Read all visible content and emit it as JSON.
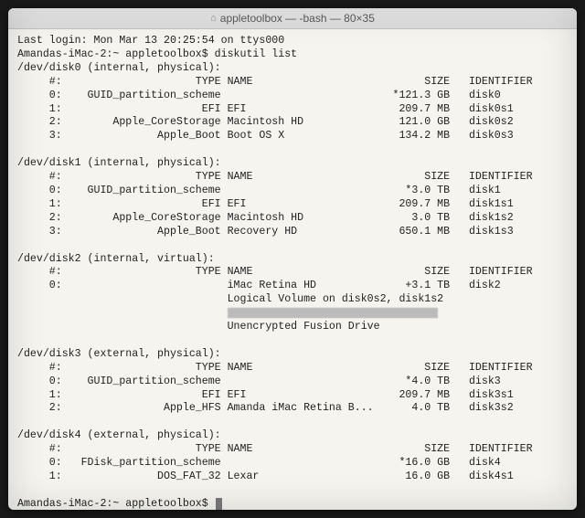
{
  "window": {
    "title": "appletoolbox — -bash — 80×35",
    "home_glyph": "⌂"
  },
  "session": {
    "last_login": "Last login: Mon Mar 13 20:25:54 on ttys000",
    "prompt_host": "Amandas-iMac-2:~ appletoolbox$",
    "command": "diskutil list"
  },
  "col": {
    "indent": 3,
    "num_w": 4,
    "type_w": 25,
    "name_w": 24,
    "size_w": 11,
    "id_pad": 3
  },
  "header_labels": {
    "num": "#:",
    "type": "TYPE",
    "name": "NAME",
    "size": "SIZE",
    "id": "IDENTIFIER"
  },
  "disks": [
    {
      "device": "/dev/disk0 (internal, physical):",
      "rows": [
        {
          "n": "0:",
          "type": "GUID_partition_scheme",
          "name": "",
          "size": "*121.3 GB",
          "id": "disk0"
        },
        {
          "n": "1:",
          "type": "EFI",
          "name": "EFI",
          "size": "209.7 MB",
          "id": "disk0s1"
        },
        {
          "n": "2:",
          "type": "Apple_CoreStorage",
          "name": "Macintosh HD",
          "size": "121.0 GB",
          "id": "disk0s2"
        },
        {
          "n": "3:",
          "type": "Apple_Boot",
          "name": "Boot OS X",
          "size": "134.2 MB",
          "id": "disk0s3"
        }
      ]
    },
    {
      "device": "/dev/disk1 (internal, physical):",
      "rows": [
        {
          "n": "0:",
          "type": "GUID_partition_scheme",
          "name": "",
          "size": "*3.0 TB",
          "id": "disk1"
        },
        {
          "n": "1:",
          "type": "EFI",
          "name": "EFI",
          "size": "209.7 MB",
          "id": "disk1s1"
        },
        {
          "n": "2:",
          "type": "Apple_CoreStorage",
          "name": "Macintosh HD",
          "size": "3.0 TB",
          "id": "disk1s2"
        },
        {
          "n": "3:",
          "type": "Apple_Boot",
          "name": "Recovery HD",
          "size": "650.1 MB",
          "id": "disk1s3"
        }
      ]
    },
    {
      "device": "/dev/disk2 (internal, virtual):",
      "rows": [
        {
          "n": "0:",
          "type": "",
          "name": "iMac Retina HD",
          "size": "+3.1 TB",
          "id": "disk2"
        }
      ],
      "extra": [
        "Logical Volume on disk0s2, disk1s2",
        "__SMUDGE__",
        "Unencrypted Fusion Drive"
      ]
    },
    {
      "device": "/dev/disk3 (external, physical):",
      "rows": [
        {
          "n": "0:",
          "type": "GUID_partition_scheme",
          "name": "",
          "size": "*4.0 TB",
          "id": "disk3"
        },
        {
          "n": "1:",
          "type": "EFI",
          "name": "EFI",
          "size": "209.7 MB",
          "id": "disk3s1"
        },
        {
          "n": "2:",
          "type": "Apple_HFS",
          "name": "Amanda iMac Retina B...",
          "size": "4.0 TB",
          "id": "disk3s2"
        }
      ]
    },
    {
      "device": "/dev/disk4 (external, physical):",
      "rows": [
        {
          "n": "0:",
          "type": "FDisk_partition_scheme",
          "name": "",
          "size": "*16.0 GB",
          "id": "disk4"
        },
        {
          "n": "1:",
          "type": "DOS_FAT_32",
          "name": "Lexar",
          "size": "16.0 GB",
          "id": "disk4s1"
        }
      ]
    }
  ]
}
